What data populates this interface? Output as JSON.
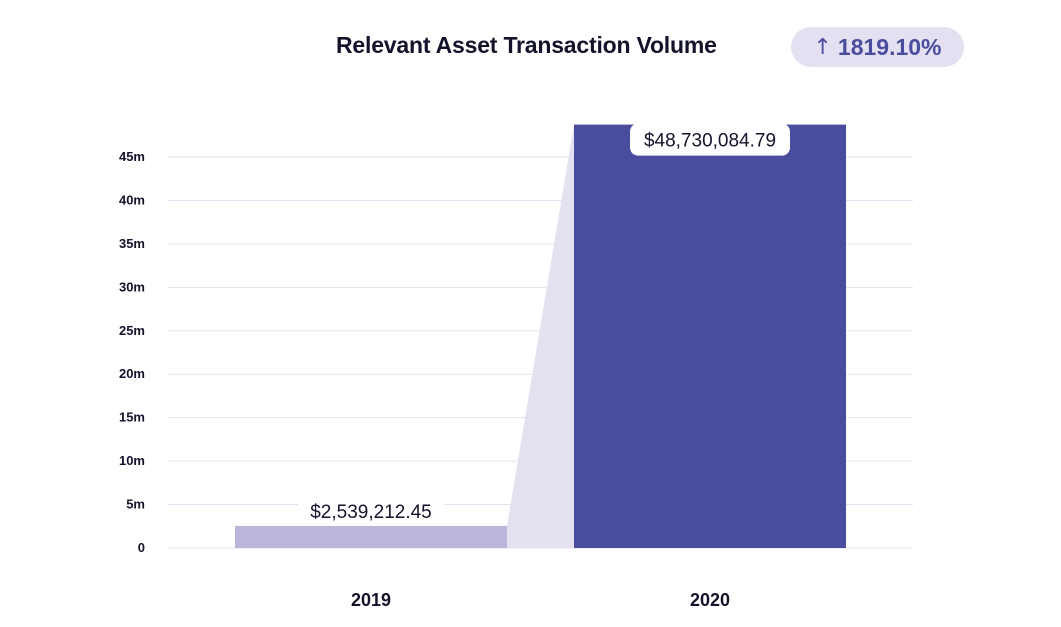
{
  "header": {
    "title": "Relevant Asset Transaction Volume",
    "change_label": "1819.10%",
    "change_icon": "arrow-up-icon"
  },
  "colors": {
    "bar_2019": "#bcb5d9",
    "bar_2020": "#4a4c9e",
    "connector": "#e5e1f1",
    "badge_bg": "#e4e0f2",
    "badge_text": "#4a4c9e",
    "grid": "#e3e1ef"
  },
  "chart_data": {
    "type": "bar",
    "title": "Relevant Asset Transaction Volume",
    "categories": [
      "2019",
      "2020"
    ],
    "values": [
      2539212.45,
      48730084.79
    ],
    "data_labels": [
      "$2,539,212.45",
      "$48,730,084.79"
    ],
    "ytick_values": [
      0,
      5000000,
      10000000,
      15000000,
      20000000,
      25000000,
      30000000,
      35000000,
      40000000,
      45000000
    ],
    "ytick_labels": [
      "0",
      "5m",
      "10m",
      "15m",
      "20m",
      "25m",
      "30m",
      "35m",
      "40m",
      "45m"
    ],
    "ylim": [
      0,
      45000000
    ],
    "grid": true,
    "legend": "none",
    "xlabel": "",
    "ylabel": ""
  }
}
